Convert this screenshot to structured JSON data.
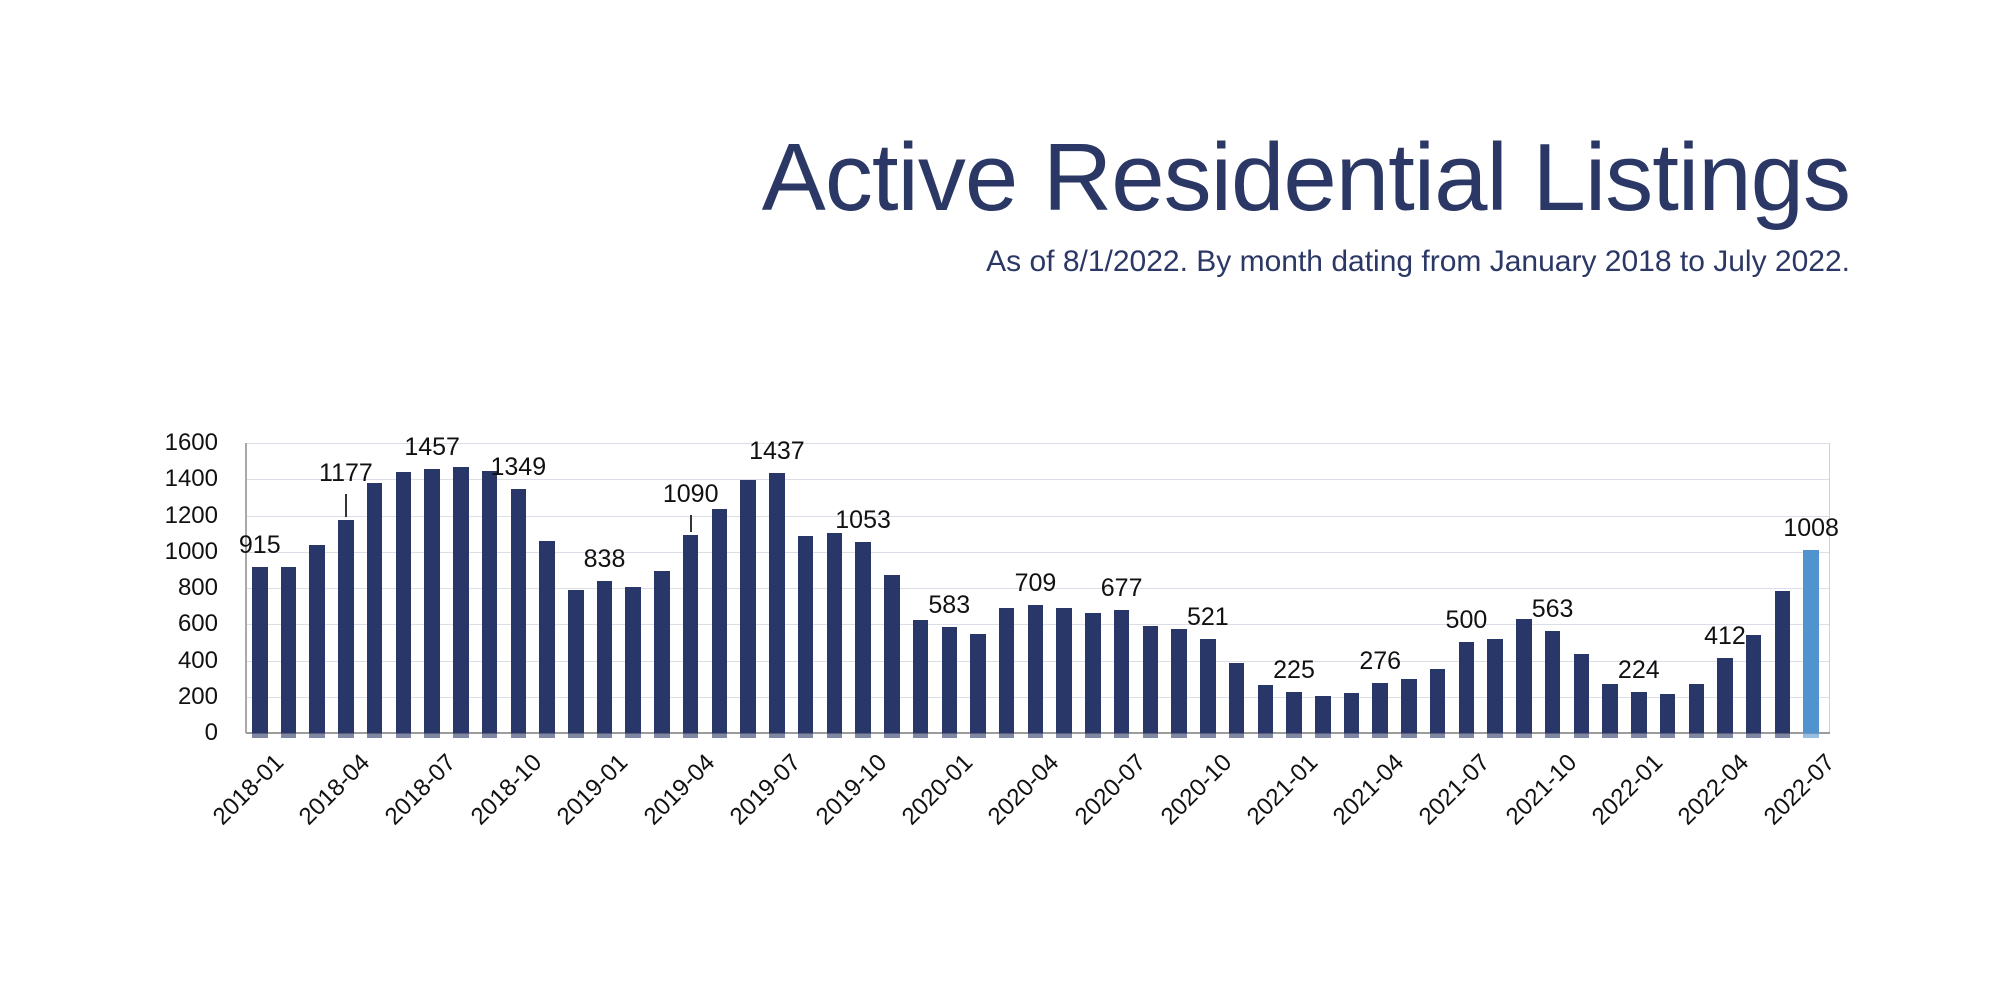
{
  "header": {
    "title": "Active Residential Listings",
    "subtitle": "As of 8/1/2022. By month dating from January 2018 to July 2022."
  },
  "chart_data": {
    "type": "bar",
    "title": "Active Residential Listings",
    "subtitle": "As of 8/1/2022. By month dating from January 2018 to July 2022.",
    "xlabel": "",
    "ylabel": "",
    "ylim": [
      0,
      1600
    ],
    "ytick_step": 200,
    "yticks": [
      "0",
      "200",
      "400",
      "600",
      "800",
      "1000",
      "1200",
      "1400",
      "1600"
    ],
    "grid": true,
    "legend": false,
    "bar_color": "#283668",
    "highlight_color": "#5193CE",
    "highlight_index": 54,
    "label_every": 3,
    "leader_line_indices": [
      3,
      15
    ],
    "categories": [
      "2018-01",
      "2018-02",
      "2018-03",
      "2018-04",
      "2018-05",
      "2018-06",
      "2018-07",
      "2018-08",
      "2018-09",
      "2018-10",
      "2018-11",
      "2018-12",
      "2019-01",
      "2019-02",
      "2019-03",
      "2019-04",
      "2019-05",
      "2019-06",
      "2019-07",
      "2019-08",
      "2019-09",
      "2019-10",
      "2019-11",
      "2019-12",
      "2020-01",
      "2020-02",
      "2020-03",
      "2020-04",
      "2020-05",
      "2020-06",
      "2020-07",
      "2020-08",
      "2020-09",
      "2020-10",
      "2020-11",
      "2020-12",
      "2021-01",
      "2021-02",
      "2021-03",
      "2021-04",
      "2021-05",
      "2021-06",
      "2021-07",
      "2021-08",
      "2021-09",
      "2021-10",
      "2021-11",
      "2021-12",
      "2022-01",
      "2022-02",
      "2022-03",
      "2022-04",
      "2022-05",
      "2022-06",
      "2022-07"
    ],
    "values": [
      915,
      916,
      1040,
      1177,
      1380,
      1440,
      1457,
      1470,
      1448,
      1349,
      1060,
      787,
      838,
      808,
      895,
      1090,
      1235,
      1396,
      1437,
      1085,
      1105,
      1053,
      870,
      624,
      583,
      548,
      692,
      709,
      690,
      660,
      677,
      588,
      575,
      521,
      389,
      267,
      225,
      205,
      222,
      276,
      297,
      351,
      500,
      519,
      630,
      563,
      437,
      272,
      224,
      214,
      270,
      412,
      542,
      785,
      1008
    ],
    "labeled_values": [
      915,
      1177,
      1457,
      1349,
      838,
      1090,
      1437,
      1053,
      583,
      709,
      677,
      521,
      225,
      276,
      500,
      563,
      224,
      412,
      1008
    ],
    "x_tick_labels": [
      "2018-01",
      "2018-04",
      "2018-07",
      "2018-10",
      "2019-01",
      "2019-04",
      "2019-07",
      "2019-10",
      "2020-01",
      "2020-04",
      "2020-07",
      "2020-10",
      "2021-01",
      "2021-04",
      "2021-07",
      "2021-10",
      "2022-01",
      "2022-04",
      "2022-07"
    ]
  },
  "colors": {
    "title": "#2B3866",
    "bar": "#283668",
    "highlight_bar": "#5193CE",
    "gridline": "#DBDEE6",
    "axis_line": "#9C9C9C",
    "tick_text": "#111111"
  }
}
